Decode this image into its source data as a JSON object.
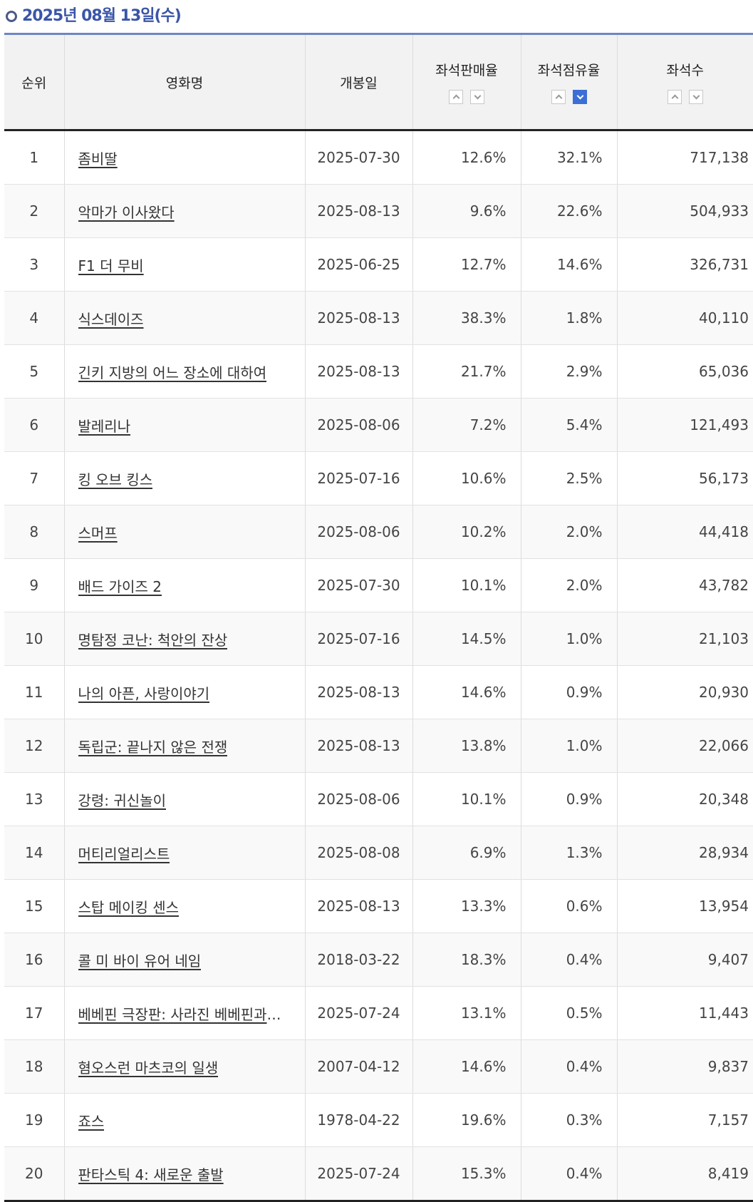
{
  "header": {
    "date": "2025년 08월 13일(수)"
  },
  "columns": {
    "rank": "순위",
    "title": "영화명",
    "release": "개봉일",
    "sales_rate": "좌석판매율",
    "share_rate": "좌석점유율",
    "seats": "좌석수"
  },
  "sort": {
    "active_column": "share_rate",
    "active_direction": "down"
  },
  "rows": [
    {
      "rank": "1",
      "title": "좀비딸",
      "release": "2025-07-30",
      "release_wrapped": true,
      "sales_rate": "12.6%",
      "share_rate": "32.1%",
      "seats": "717,138"
    },
    {
      "rank": "2",
      "title": "악마가 이사왔다",
      "release": "2025-08-13",
      "release_wrapped": false,
      "sales_rate": "9.6%",
      "share_rate": "22.6%",
      "seats": "504,933"
    },
    {
      "rank": "3",
      "title": "F1 더 무비",
      "release": "2025-06-25",
      "release_wrapped": false,
      "sales_rate": "12.7%",
      "share_rate": "14.6%",
      "seats": "326,731"
    },
    {
      "rank": "4",
      "title": "식스데이즈",
      "release": "2025-08-13",
      "release_wrapped": false,
      "sales_rate": "38.3%",
      "share_rate": "1.8%",
      "seats": "40,110"
    },
    {
      "rank": "5",
      "title": "긴키 지방의 어느 장소에 대하여",
      "release": "2025-08-13",
      "release_wrapped": false,
      "sales_rate": "21.7%",
      "share_rate": "2.9%",
      "seats": "65,036"
    },
    {
      "rank": "6",
      "title": "발레리나",
      "release": "2025-08-06",
      "release_wrapped": false,
      "sales_rate": "7.2%",
      "share_rate": "5.4%",
      "seats": "121,493"
    },
    {
      "rank": "7",
      "title": "킹 오브 킹스",
      "release": "2025-07-16",
      "release_wrapped": false,
      "sales_rate": "10.6%",
      "share_rate": "2.5%",
      "seats": "56,173"
    },
    {
      "rank": "8",
      "title": "스머프",
      "release": "2025-08-06",
      "release_wrapped": false,
      "sales_rate": "10.2%",
      "share_rate": "2.0%",
      "seats": "44,418"
    },
    {
      "rank": "9",
      "title": "배드 가이즈 2",
      "release": "2025-07-30",
      "release_wrapped": true,
      "sales_rate": "10.1%",
      "share_rate": "2.0%",
      "seats": "43,782"
    },
    {
      "rank": "10",
      "title": "명탐정 코난: 척안의 잔상",
      "release": "2025-07-16",
      "release_wrapped": false,
      "sales_rate": "14.5%",
      "share_rate": "1.0%",
      "seats": "21,103"
    },
    {
      "rank": "11",
      "title": "나의 아픈, 사랑이야기",
      "release": "2025-08-13",
      "release_wrapped": false,
      "sales_rate": "14.6%",
      "share_rate": "0.9%",
      "seats": "20,930"
    },
    {
      "rank": "12",
      "title": "독립군: 끝나지 않은 전쟁",
      "release": "2025-08-13",
      "release_wrapped": false,
      "sales_rate": "13.8%",
      "share_rate": "1.0%",
      "seats": "22,066"
    },
    {
      "rank": "13",
      "title": "강령: 귀신놀이",
      "release": "2025-08-06",
      "release_wrapped": false,
      "sales_rate": "10.1%",
      "share_rate": "0.9%",
      "seats": "20,348"
    },
    {
      "rank": "14",
      "title": "머티리얼리스트",
      "release": "2025-08-08",
      "release_wrapped": false,
      "sales_rate": "6.9%",
      "share_rate": "1.3%",
      "seats": "28,934"
    },
    {
      "rank": "15",
      "title": "스탑 메이킹 센스",
      "release": "2025-08-13",
      "release_wrapped": false,
      "sales_rate": "13.3%",
      "share_rate": "0.6%",
      "seats": "13,954"
    },
    {
      "rank": "16",
      "title": "콜 미 바이 유어 네임",
      "release": "2018-03-22",
      "release_wrapped": false,
      "sales_rate": "18.3%",
      "share_rate": "0.4%",
      "seats": "9,407"
    },
    {
      "rank": "17",
      "title": "베베핀 극장판: 사라진 베베핀과 ...",
      "release": "2025-07-24",
      "release_wrapped": true,
      "sales_rate": "13.1%",
      "share_rate": "0.5%",
      "seats": "11,443"
    },
    {
      "rank": "18",
      "title": "혐오스런 마츠코의 일생",
      "release": "2007-04-12",
      "release_wrapped": false,
      "sales_rate": "14.6%",
      "share_rate": "0.4%",
      "seats": "9,837"
    },
    {
      "rank": "19",
      "title": "죠스",
      "release": "1978-04-22",
      "release_wrapped": false,
      "sales_rate": "19.6%",
      "share_rate": "0.3%",
      "seats": "7,157"
    },
    {
      "rank": "20",
      "title": "판타스틱 4: 새로운 출발",
      "release": "2025-07-24",
      "release_wrapped": true,
      "sales_rate": "15.3%",
      "share_rate": "0.4%",
      "seats": "8,419"
    }
  ]
}
